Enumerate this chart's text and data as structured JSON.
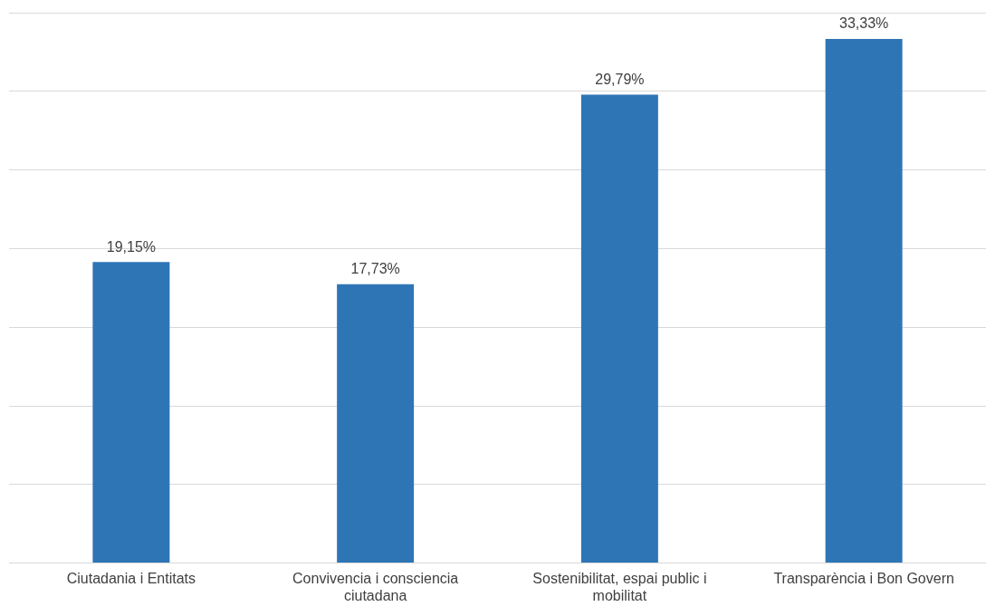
{
  "chart_data": {
    "type": "bar",
    "categories": [
      "Ciutadania i Entitats",
      "Convivencia i consciencia ciutadana",
      "Sostenibilitat, espai public i mobilitat",
      "Transparència i Bon Govern"
    ],
    "values": [
      19.15,
      17.73,
      29.79,
      33.33
    ],
    "value_labels": [
      "19,15%",
      "17,73%",
      "29,79%",
      "33,33%"
    ],
    "color": "#2e75b6",
    "grid": "y",
    "legend": false,
    "tick_labels": "x"
  }
}
